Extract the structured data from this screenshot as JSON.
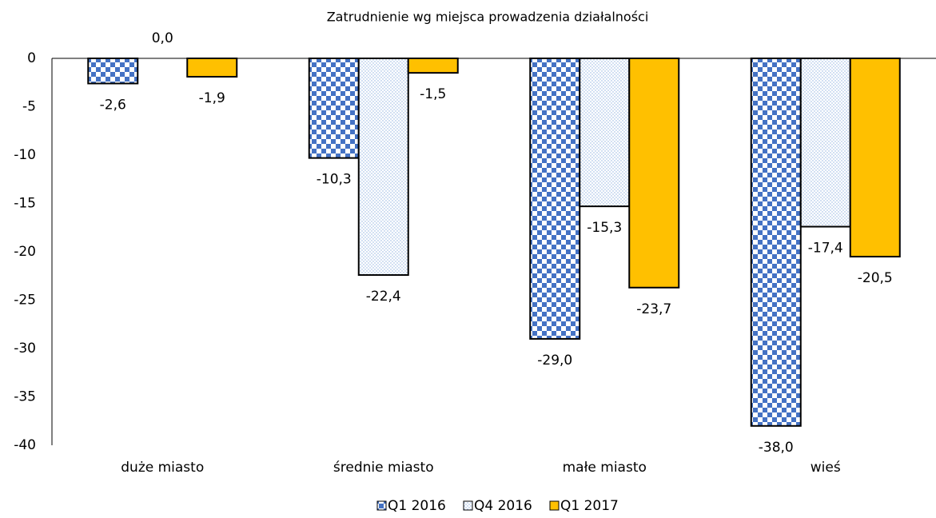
{
  "chart_data": {
    "type": "bar",
    "title": "Zatrudnienie wg miejsca prowadzenia działalności",
    "categories": [
      "duże miasto",
      "średnie miasto",
      "małe miasto",
      "wieś"
    ],
    "series": [
      {
        "name": "Q1 2016",
        "color": "#4472c4",
        "pattern": "checker",
        "values": [
          -2.6,
          -10.3,
          -29.0,
          -38.0
        ],
        "value_labels": [
          "-2,6",
          "-10,3",
          "-29,0",
          "-38,0"
        ]
      },
      {
        "name": "Q4 2016",
        "color": "#8fb0e0",
        "pattern": "dots",
        "values": [
          0.0,
          -22.4,
          -15.3,
          -17.4
        ],
        "value_labels": [
          "0,0",
          "-22,4",
          "-15,3",
          "-17,4"
        ]
      },
      {
        "name": "Q1 2017",
        "color": "#ffc000",
        "pattern": "solid",
        "values": [
          -1.9,
          -1.5,
          -23.7,
          -20.5
        ],
        "value_labels": [
          "-1,9",
          "-1,5",
          "-23,7",
          "-20,5"
        ]
      }
    ],
    "ylim": [
      -40,
      0
    ],
    "yticks": [
      0,
      -5,
      -10,
      -15,
      -20,
      -25,
      -30,
      -35,
      -40
    ],
    "grid": false,
    "legend": "bottom"
  }
}
